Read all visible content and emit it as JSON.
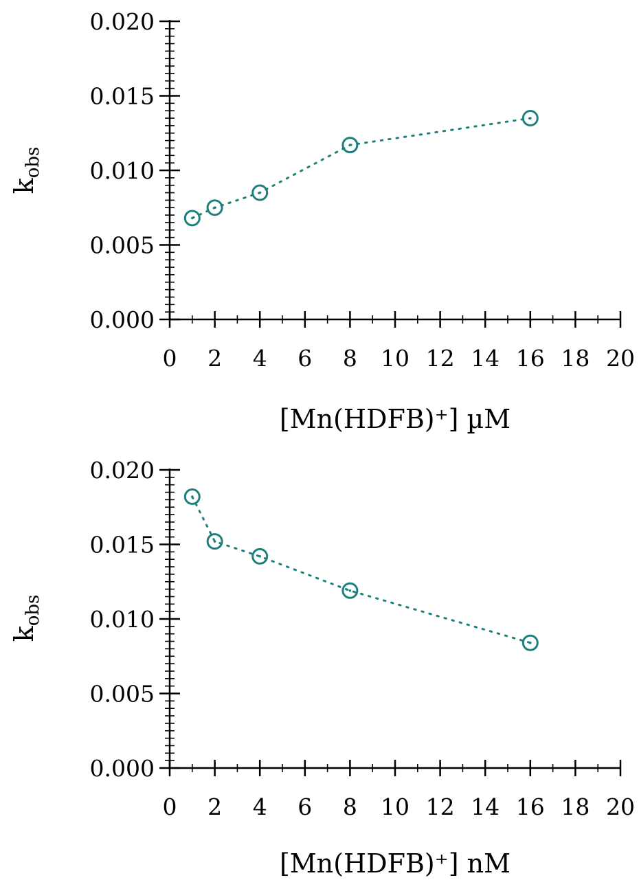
{
  "colors": {
    "series": "#1f7f7a",
    "axis": "#000000"
  },
  "chart_data": [
    {
      "type": "scatter",
      "title": "",
      "xlabel": "[Mn(HDFB)⁺] µM",
      "ylabel": {
        "main": "k",
        "sub": "obs"
      },
      "xlim": [
        0,
        20
      ],
      "ylim": [
        0.0,
        0.02
      ],
      "xticks": [
        0,
        2,
        4,
        6,
        8,
        10,
        12,
        14,
        16,
        18,
        20
      ],
      "yticks": [
        0.0,
        0.005,
        0.01,
        0.015,
        0.02
      ],
      "xtick_labels": [
        "0",
        "2",
        "4",
        "6",
        "8",
        "10",
        "12",
        "14",
        "16",
        "18",
        "20"
      ],
      "ytick_labels": [
        "0.000",
        "0.005",
        "0.010",
        "0.015",
        "0.020"
      ],
      "grid": false,
      "legend": "none",
      "series": [
        {
          "x": [
            1,
            2,
            4,
            8,
            16
          ],
          "y": [
            0.0068,
            0.0075,
            0.0085,
            0.0117,
            0.0135
          ],
          "marker": "dotted-circle",
          "line": "dotted"
        }
      ]
    },
    {
      "type": "scatter",
      "title": "",
      "xlabel": "[Mn(HDFB)⁺] nM",
      "ylabel": {
        "main": "k",
        "sub": "obs"
      },
      "xlim": [
        0,
        20
      ],
      "ylim": [
        0.0,
        0.02
      ],
      "xticks": [
        0,
        2,
        4,
        6,
        8,
        10,
        12,
        14,
        16,
        18,
        20
      ],
      "yticks": [
        0.0,
        0.005,
        0.01,
        0.015,
        0.02
      ],
      "xtick_labels": [
        "0",
        "2",
        "4",
        "6",
        "8",
        "10",
        "12",
        "14",
        "16",
        "18",
        "20"
      ],
      "ytick_labels": [
        "0.000",
        "0.005",
        "0.010",
        "0.015",
        "0.020"
      ],
      "grid": false,
      "legend": "none",
      "series": [
        {
          "x": [
            1,
            2,
            4,
            8,
            16
          ],
          "y": [
            0.0182,
            0.0152,
            0.0142,
            0.0119,
            0.0084
          ],
          "marker": "dotted-circle",
          "line": "dotted"
        }
      ]
    }
  ]
}
